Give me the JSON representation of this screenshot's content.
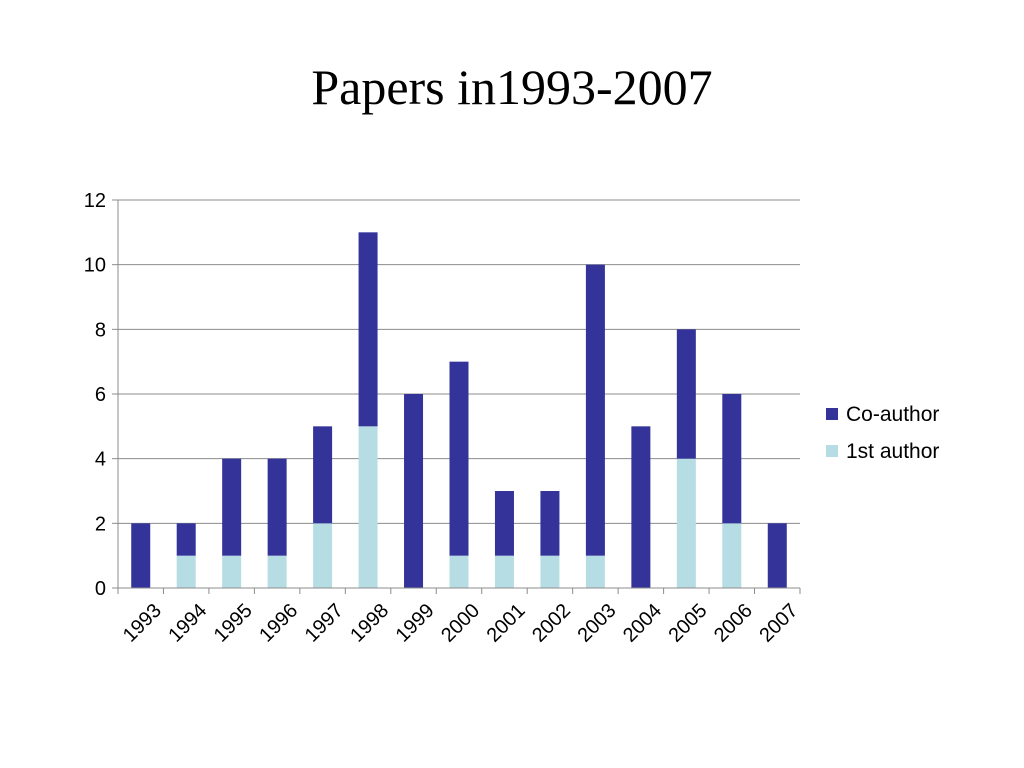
{
  "slide": {
    "title": "Papers in1993-2007"
  },
  "chart_data": {
    "type": "bar",
    "stacked": true,
    "categories": [
      "1993",
      "1994",
      "1995",
      "1996",
      "1997",
      "1998",
      "1999",
      "2000",
      "2001",
      "2002",
      "2003",
      "2004",
      "2005",
      "2006",
      "2007"
    ],
    "series": [
      {
        "name": "1st author",
        "color": "#b7dde4",
        "values": [
          0,
          1,
          1,
          1,
          2,
          5,
          0,
          1,
          1,
          1,
          1,
          0,
          4,
          2,
          0
        ]
      },
      {
        "name": "Co-author",
        "color": "#333399",
        "values": [
          2,
          1,
          3,
          3,
          3,
          6,
          6,
          6,
          2,
          2,
          9,
          5,
          4,
          4,
          2
        ]
      }
    ],
    "yticks": [
      "0",
      "2",
      "4",
      "6",
      "8",
      "10",
      "12"
    ],
    "ylim": [
      0,
      12
    ],
    "grid": true,
    "legend_position": "right",
    "legend_order": [
      "Co-author",
      "1st author"
    ]
  }
}
